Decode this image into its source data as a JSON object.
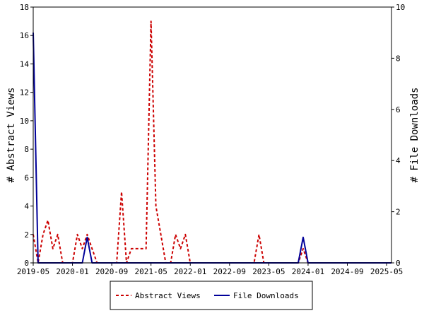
{
  "chart_data": {
    "type": "line",
    "ylabel": "# Abstract Views",
    "y2label": "# File Downloads",
    "ylim": [
      0,
      18
    ],
    "y2lim": [
      0,
      10
    ],
    "yticks": [
      0,
      2,
      4,
      6,
      8,
      10,
      12,
      14,
      16,
      18
    ],
    "y2ticks": [
      0,
      2,
      4,
      6,
      8,
      10
    ],
    "xlim": [
      "2019-05",
      "2025-06"
    ],
    "xticks": [
      "2019-05",
      "2020-01",
      "2020-09",
      "2021-05",
      "2022-01",
      "2022-09",
      "2023-05",
      "2024-01",
      "2024-09",
      "2025-05"
    ],
    "grid": false,
    "legend_position": "bottom",
    "series": [
      {
        "name": "Abstract Views",
        "axis": "left",
        "color": "#cc0000",
        "dash": "dashed",
        "x": [
          "2019-05",
          "2019-06",
          "2019-07",
          "2019-08",
          "2019-09",
          "2019-10",
          "2019-11",
          "2019-12",
          "2020-01",
          "2020-02",
          "2020-03",
          "2020-04",
          "2020-05",
          "2020-06",
          "2020-07",
          "2020-08",
          "2020-09",
          "2020-10",
          "2020-11",
          "2020-12",
          "2021-01",
          "2021-02",
          "2021-03",
          "2021-04",
          "2021-05",
          "2021-06",
          "2021-07",
          "2021-08",
          "2021-09",
          "2021-10",
          "2021-11",
          "2021-12",
          "2022-01",
          "2022-02",
          "2022-03",
          "2022-04",
          "2022-05",
          "2022-06",
          "2022-07",
          "2022-08",
          "2022-09",
          "2022-10",
          "2022-11",
          "2022-12",
          "2023-01",
          "2023-02",
          "2023-03",
          "2023-04",
          "2023-05",
          "2023-06",
          "2023-07",
          "2023-08",
          "2023-09",
          "2023-10",
          "2023-11",
          "2023-12",
          "2024-01",
          "2024-02",
          "2024-03",
          "2024-04",
          "2024-05",
          "2024-06",
          "2024-07",
          "2024-08",
          "2024-09",
          "2024-10",
          "2024-11",
          "2024-12",
          "2025-01",
          "2025-02",
          "2025-03",
          "2025-04",
          "2025-05",
          "2025-06"
        ],
        "values": [
          2,
          0,
          2,
          3,
          1,
          2,
          0,
          0,
          0,
          2,
          1,
          2,
          1,
          0,
          0,
          0,
          0,
          0,
          5,
          0,
          1,
          1,
          1,
          1,
          17,
          4,
          2,
          0,
          0,
          2,
          1,
          2,
          0,
          0,
          0,
          0,
          0,
          0,
          0,
          0,
          0,
          0,
          0,
          0,
          0,
          0,
          2,
          0,
          0,
          0,
          0,
          0,
          0,
          0,
          0,
          1,
          0,
          0,
          0,
          0,
          0,
          0,
          0,
          0,
          0,
          0,
          0,
          0,
          0,
          0,
          0,
          0,
          0,
          0
        ]
      },
      {
        "name": "File Downloads",
        "axis": "right",
        "color": "#000099",
        "dash": "solid",
        "x": [
          "2019-05",
          "2019-06",
          "2019-07",
          "2019-08",
          "2019-09",
          "2019-10",
          "2019-11",
          "2019-12",
          "2020-01",
          "2020-02",
          "2020-03",
          "2020-04",
          "2020-05",
          "2020-06",
          "2020-07",
          "2020-08",
          "2020-09",
          "2020-10",
          "2020-11",
          "2020-12",
          "2021-01",
          "2021-02",
          "2021-03",
          "2021-04",
          "2021-05",
          "2021-06",
          "2021-07",
          "2021-08",
          "2021-09",
          "2021-10",
          "2021-11",
          "2021-12",
          "2022-01",
          "2022-02",
          "2022-03",
          "2022-04",
          "2022-05",
          "2022-06",
          "2022-07",
          "2022-08",
          "2022-09",
          "2022-10",
          "2022-11",
          "2022-12",
          "2023-01",
          "2023-02",
          "2023-03",
          "2023-04",
          "2023-05",
          "2023-06",
          "2023-07",
          "2023-08",
          "2023-09",
          "2023-10",
          "2023-11",
          "2023-12",
          "2024-01",
          "2024-02",
          "2024-03",
          "2024-04",
          "2024-05",
          "2024-06",
          "2024-07",
          "2024-08",
          "2024-09",
          "2024-10",
          "2024-11",
          "2024-12",
          "2025-01",
          "2025-02",
          "2025-03",
          "2025-04",
          "2025-05",
          "2025-06"
        ],
        "values": [
          9,
          0,
          0,
          0,
          0,
          0,
          0,
          0,
          0,
          0,
          0,
          1,
          0,
          0,
          0,
          0,
          0,
          0,
          0,
          0,
          0,
          0,
          0,
          0,
          0,
          0,
          0,
          0,
          0,
          0,
          0,
          0,
          0,
          0,
          0,
          0,
          0,
          0,
          0,
          0,
          0,
          0,
          0,
          0,
          0,
          0,
          0,
          0,
          0,
          0,
          0,
          0,
          0,
          0,
          0,
          1,
          0,
          0,
          0,
          0,
          0,
          0,
          0,
          0,
          0,
          0,
          0,
          0,
          0,
          0,
          0,
          0,
          0,
          0
        ]
      }
    ]
  }
}
